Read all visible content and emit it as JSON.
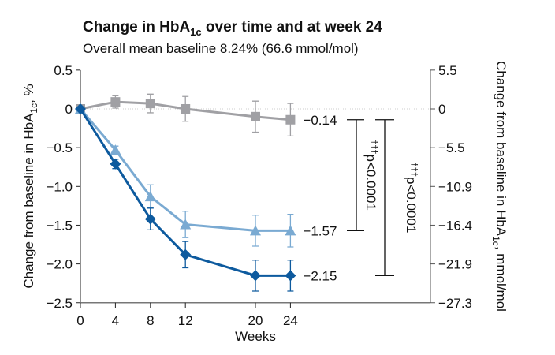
{
  "chart_data": {
    "type": "line",
    "title": "Change in HbA1c over time and at week 24",
    "title_parts": {
      "pre": "Change in HbA",
      "sub": "1c",
      "post": " over time and at week 24"
    },
    "subtitle": "Overall mean baseline 8.24% (66.6 mmol/mol)",
    "xlabel": "Weeks",
    "ylabel": "Change from baseline in HbA1c, %",
    "ylabel_parts": {
      "pre": "Change from baseline in HbA",
      "sub": "1c",
      "post": ", %"
    },
    "y2label": "Change from baseline in HbA1c, mmol/mol",
    "y2label_parts": {
      "pre": "Change from baseline in HbA",
      "sub": "1c",
      "post": ", mmol/mol"
    },
    "x": [
      0,
      4,
      8,
      12,
      20,
      24
    ],
    "xticks": [
      "0",
      "4",
      "8",
      "12",
      "20",
      "24"
    ],
    "ylim": [
      -2.5,
      0.5
    ],
    "yticks": [
      0.5,
      0,
      -0.5,
      -1.0,
      -1.5,
      -2.0,
      -2.5
    ],
    "ytick_labels": [
      "0.5",
      "0",
      "−0.5",
      "−1.0",
      "−1.5",
      "−2.0",
      "−2.5"
    ],
    "y2tick_labels": [
      "5.5",
      "0",
      "−5.5",
      "−10.9",
      "−16.4",
      "−21.9",
      "−27.3"
    ],
    "grid": false,
    "zero_line": "dotted",
    "series": [
      {
        "marker": "square",
        "color": "#a0a0a4",
        "values": [
          0,
          0.09,
          0.07,
          0.0,
          -0.1,
          -0.14
        ],
        "errors": [
          0,
          0.08,
          0.12,
          0.16,
          0.2,
          0.21
        ],
        "end_label": "−0.14"
      },
      {
        "marker": "triangle",
        "color": "#7aaad2",
        "values": [
          0,
          -0.53,
          -1.13,
          -1.49,
          -1.57,
          -1.57
        ],
        "errors": [
          0,
          0.05,
          0.15,
          0.17,
          0.2,
          0.21
        ],
        "end_label": "−1.57"
      },
      {
        "marker": "diamond",
        "color": "#0d5a9e",
        "values": [
          0,
          -0.71,
          -1.42,
          -1.88,
          -2.15,
          -2.15
        ],
        "errors": [
          0,
          0.06,
          0.14,
          0.17,
          0.2,
          0.2
        ],
        "end_label": "−2.15"
      }
    ],
    "annotations": [
      {
        "from": -0.14,
        "to": -1.57,
        "daggers": "†††",
        "text": "p<0.0001"
      },
      {
        "from": -0.14,
        "to": -2.15,
        "daggers": "†††",
        "text": "p<0.0001"
      }
    ]
  }
}
